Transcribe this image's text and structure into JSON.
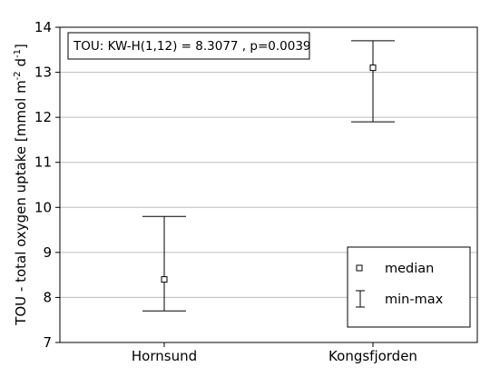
{
  "chart_data": {
    "type": "box",
    "title": "",
    "xlabel": "",
    "ylabel": "TOU - total oxygen uptake [mmol m",
    "ylabel_sup1": "-2",
    "ylabel_mid": " d",
    "ylabel_sup2": "-1",
    "ylabel_end": "]",
    "categories": [
      "Hornsund",
      "Kongsfjorden"
    ],
    "median": [
      8.4,
      13.1
    ],
    "min": [
      7.7,
      11.9
    ],
    "max": [
      9.8,
      13.7
    ],
    "ylim": [
      7,
      14
    ],
    "yticks": [
      7,
      8,
      9,
      10,
      11,
      12,
      13,
      14
    ],
    "grid": true,
    "annotation": "TOU: KW-H(1,12) = 8.3077 , p=0.0039",
    "legend": {
      "position": "bottom-right",
      "entries": [
        {
          "marker": "square",
          "label": "median"
        },
        {
          "marker": "whisker",
          "label": "min-max"
        }
      ]
    }
  }
}
